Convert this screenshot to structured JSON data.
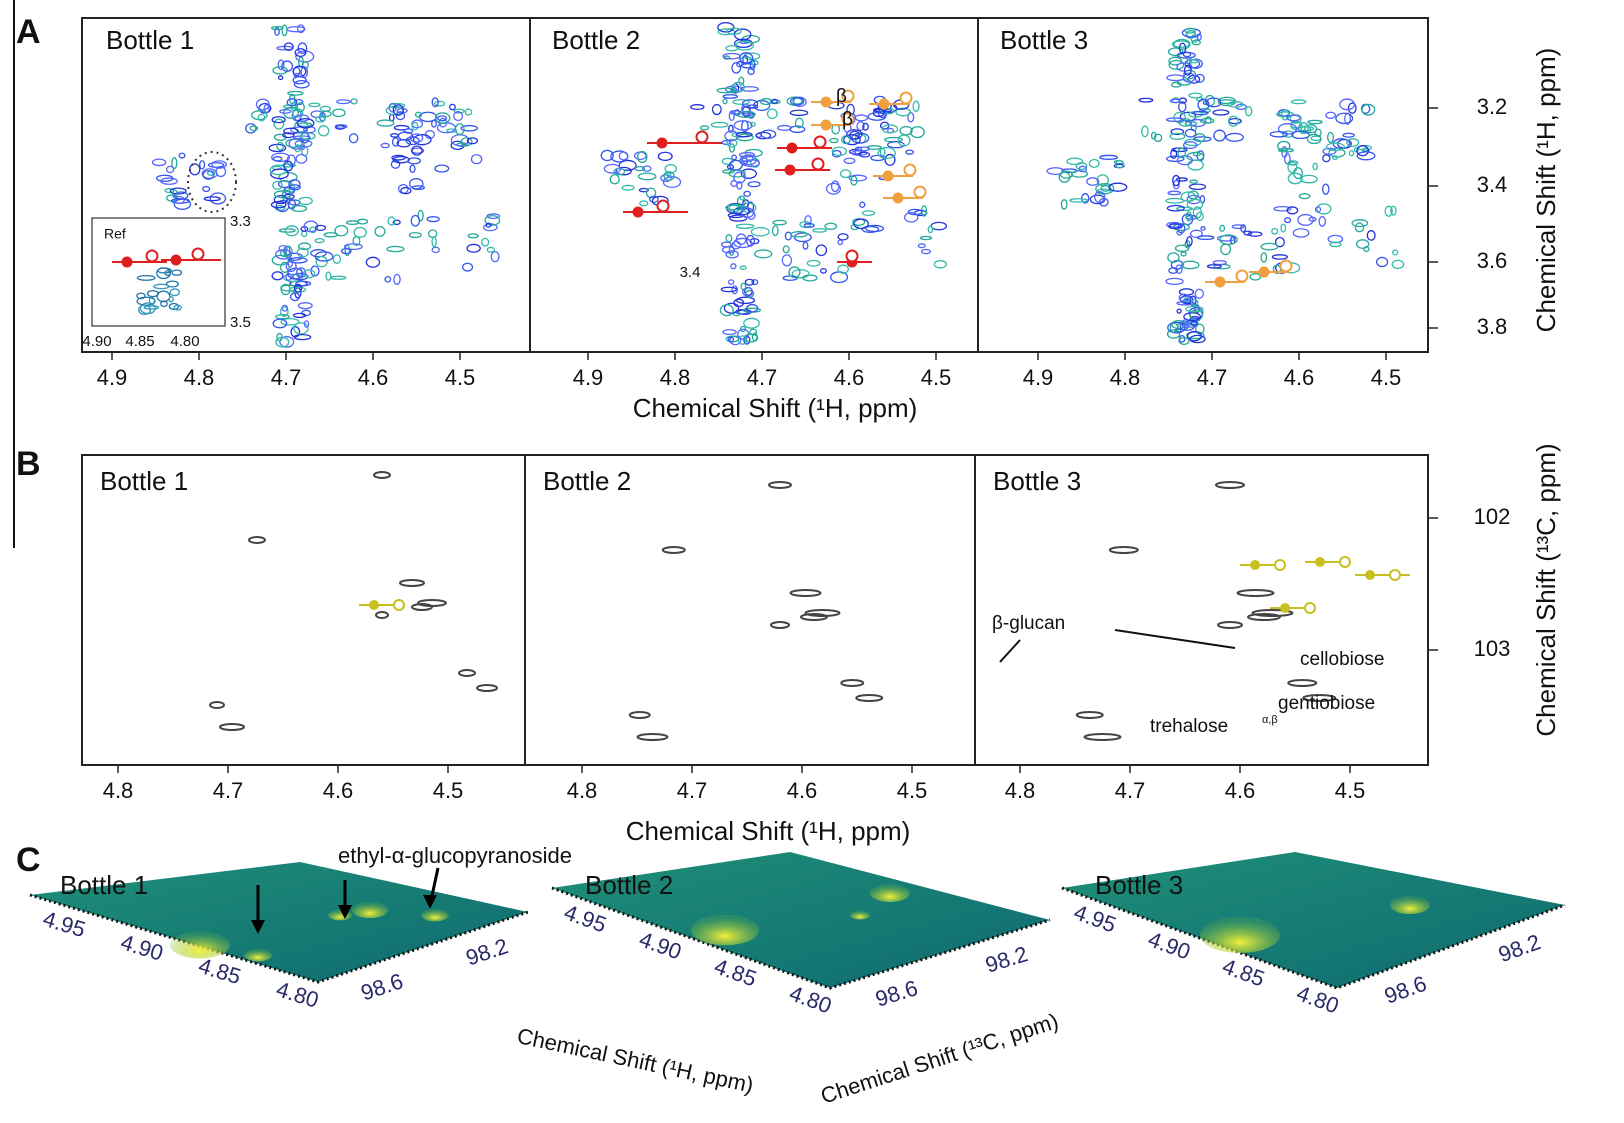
{
  "panels": [
    {
      "label": "A",
      "bottles": [
        "Bottle 1",
        "Bottle 2",
        "Bottle 3"
      ],
      "xticks": [
        "4.9",
        "4.8",
        "4.7",
        "4.6",
        "4.5"
      ],
      "yticks": [
        "3.2",
        "3.4",
        "3.6",
        "3.8"
      ],
      "xlabel": "Chemical Shift (¹H, ppm)",
      "ylabel": "Chemical Shift (¹H, ppm)",
      "inset": {
        "title": "Ref",
        "xticks": [
          "4.90",
          "4.85",
          "4.80"
        ],
        "yticks": [
          "3.3",
          "3.5"
        ]
      },
      "annotations": [
        "β",
        "β",
        "3.4"
      ]
    },
    {
      "label": "B",
      "bottles": [
        "Bottle 1",
        "Bottle 2",
        "Bottle 3"
      ],
      "xticks": [
        "4.8",
        "4.7",
        "4.6",
        "4.5"
      ],
      "yticks": [
        "102",
        "103"
      ],
      "xlabel": "Chemical Shift (¹H, ppm)",
      "ylabel": "Chemical Shift (¹³C, ppm)",
      "annotations": [
        "β-glucan",
        "cellobiose",
        "gentiobiose"
      ],
      "trehalose": {
        "text": "trehalose",
        "superscript": "α,β"
      }
    },
    {
      "label": "C",
      "bottles": [
        "Bottle 1",
        "Bottle 2",
        "Bottle 3"
      ],
      "annotation": "ethyl-α-glucopyranoside",
      "xticks": [
        "4.95",
        "4.90",
        "4.85",
        "4.80"
      ],
      "yticks": [
        "98.6",
        "98.2"
      ],
      "xlabel": "Chemical Shift (¹H, ppm)",
      "ylabel": "Chemical Shift (¹³C, ppm)"
    }
  ]
}
